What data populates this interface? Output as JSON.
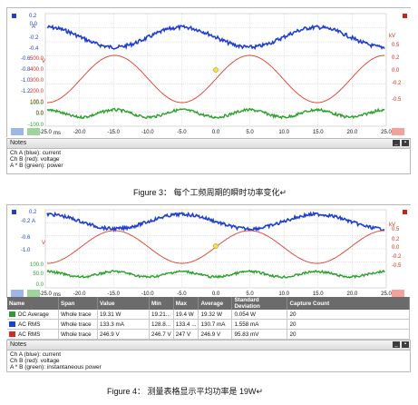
{
  "figure1": {
    "x_ticks": [
      "-25.0",
      "-20.0",
      "-15.0",
      "-10.0",
      "-5.0",
      "0.0",
      "5.0",
      "10.0",
      "15.0",
      "20.0",
      "25.0"
    ],
    "x_unit": "ms",
    "left_blue_ticks": [
      "0.2",
      "0.0",
      "-0.2",
      "-0.4",
      "-0.6",
      "-0.8",
      "-1.0",
      "-1.2"
    ],
    "left_red_ticks": [
      "500.0",
      "400.0",
      "300.0",
      "200.0",
      "100.0",
      "0.0"
    ],
    "left_green_ticks": [
      "100.0",
      "0.0",
      "-100.0"
    ],
    "right_ticks": [
      "0.5",
      "0.2",
      "0.0",
      "-0.2",
      "-0.5"
    ],
    "blue_unit": "A",
    "red_unit": "V",
    "right_unit": "kV",
    "notes_title": "Notes",
    "notes": [
      "Ch A (blue): current",
      "Ch B (red): voltage",
      "A * B (green): power"
    ],
    "caption": "Figure 3：  每个工频周期的瞬时功率变化↵"
  },
  "figure2": {
    "x_ticks": [
      "-25.0",
      "-20.0",
      "-15.0",
      "-10.0",
      "-5.0",
      "0.0",
      "5.0",
      "10.0",
      "15.0",
      "20.0",
      "25.0"
    ],
    "x_unit": "ms",
    "left_ticks": [
      "0.2",
      "-0.2",
      "-0.6",
      "-1.0"
    ],
    "left_green_ticks": [
      "100.0",
      "50.0",
      "0.0"
    ],
    "right_ticks": [
      "0.5",
      "0.2",
      "0.0",
      "-0.2",
      "-0.5"
    ],
    "blue_unit": "A",
    "red_unit": "V",
    "right_unit": "kV",
    "table": {
      "headers": [
        "Name",
        "Span",
        "Value",
        "Min",
        "Max",
        "Average",
        "Standard Deviation",
        "Capture Count"
      ],
      "rows": [
        {
          "color": "#2e9b2e",
          "cells": [
            "DC Average",
            "Whole trace",
            "19.31 W",
            "19.21...",
            "19.4 W",
            "19.32 W",
            "0.054 W",
            "20"
          ]
        },
        {
          "color": "#1f3fd0",
          "cells": [
            "AC RMS",
            "Whole trace",
            "133.3 mA",
            "128.8...",
            "133.4 ...",
            "130.7 mA",
            "1.558 mA",
            "20"
          ]
        },
        {
          "color": "#d52b1e",
          "cells": [
            "AC RMS",
            "Whole trace",
            "246.9 V",
            "246.7 V",
            "247 V",
            "246.9 V",
            "95.83 mV",
            "20"
          ]
        }
      ]
    },
    "notes_title": "Notes",
    "notes": [
      "Ch A (blue): current",
      "Ch B (red): voltage",
      "A * B (green): instantaneous power"
    ],
    "caption": "Figure 4：  测量表格显示平均功率是 19W↵"
  }
}
